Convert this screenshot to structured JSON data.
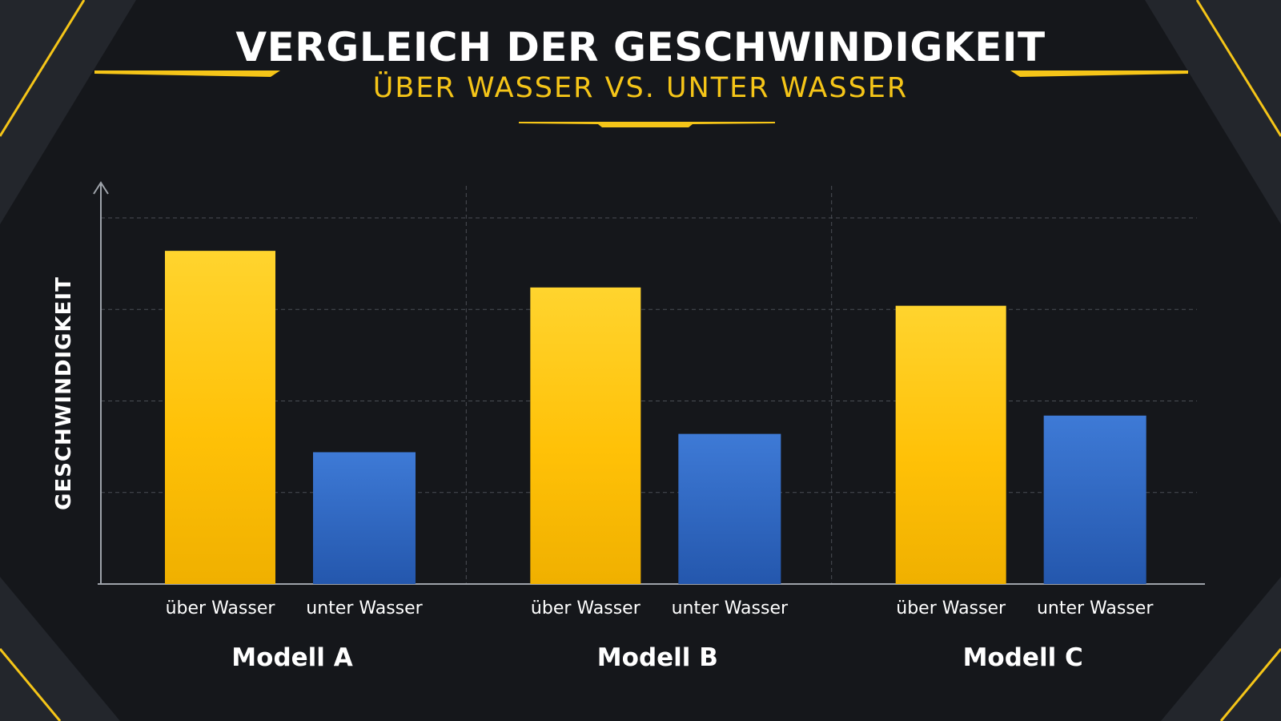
{
  "colors": {
    "background": "#15171b",
    "accent": "#f5c518",
    "uber_series": "#ffc107",
    "unter_series": "#3a74d0"
  },
  "chart_data": {
    "type": "bar",
    "title": "VERGLEICH DER GESCHWINDIGKEIT",
    "subtitle": "ÜBER WASSER VS. UNTER WASSER",
    "xlabel": "",
    "ylabel": "GESCHWINDIGKEIT",
    "ylim": [
      0,
      100
    ],
    "grid": true,
    "legend": "none",
    "categories": [
      "Modell A",
      "Modell B",
      "Modell C"
    ],
    "series": [
      {
        "name": "über Wasser",
        "values": [
          91,
          81,
          76
        ]
      },
      {
        "name": "unter Wasser",
        "values": [
          36,
          41,
          46
        ]
      }
    ]
  }
}
